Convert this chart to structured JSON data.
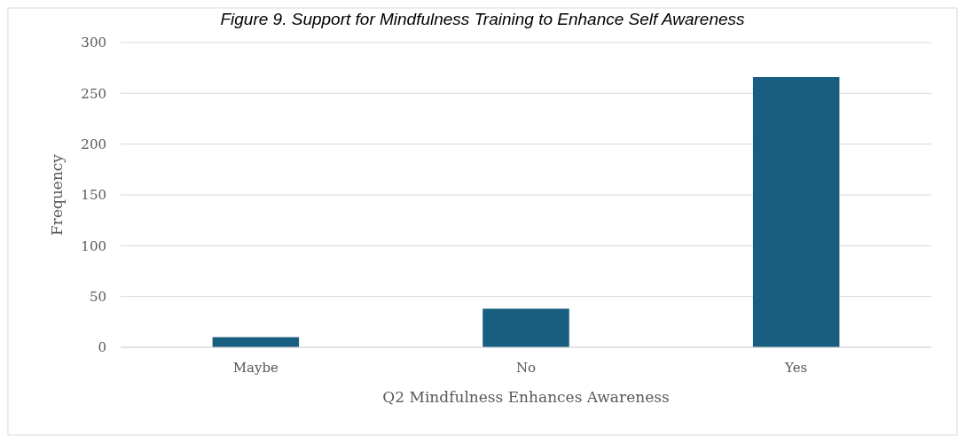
{
  "chart_data": {
    "type": "bar",
    "title": "Figure 9. Support for Mindfulness Training to Enhance Self Awareness",
    "xlabel": "Q2 Mindfulness Enhances Awareness",
    "ylabel": "Frequency",
    "categories": [
      "Maybe",
      "No",
      "Yes"
    ],
    "values": [
      10,
      38,
      266
    ],
    "color": "#175e80",
    "ylim": [
      0,
      300
    ],
    "yticks": [
      0,
      50,
      100,
      150,
      200,
      250,
      300
    ],
    "grid": "y"
  }
}
